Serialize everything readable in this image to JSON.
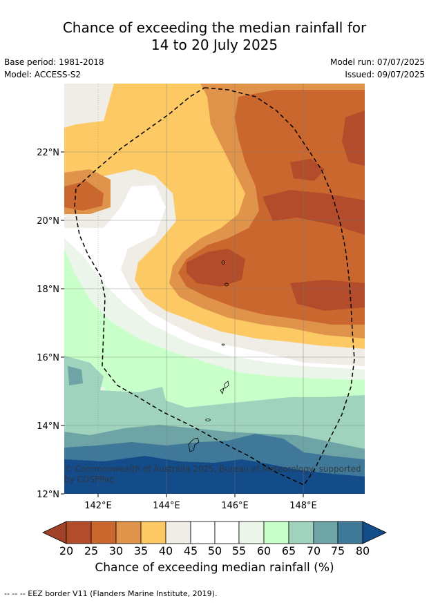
{
  "title_line1": "Chance of exceeding the median rainfall for",
  "title_line2": "14 to 20 July 2025",
  "base_period": "Base period: 1981-2018",
  "model": "Model: ACCESS-S2",
  "model_run": "Model run: 07/07/2025",
  "issued": "Issued: 09/07/2025",
  "lon_ticks": [
    "142°E",
    "144°E",
    "146°E",
    "148°E"
  ],
  "lat_ticks": [
    "22°N",
    "20°N",
    "18°N",
    "16°N",
    "14°N",
    "12°N"
  ],
  "copyright": "© Commonwealth of Australia 2025, Bureau of Meteorology, supported by COSPPac",
  "colorbar": {
    "title": "Chance of exceeding median rainfall (%)",
    "ticks": [
      "20",
      "25",
      "30",
      "35",
      "40",
      "45",
      "50",
      "55",
      "60",
      "65",
      "70",
      "75",
      "80"
    ],
    "colors": {
      "under": "#a0412a",
      "c20": "#b24c2a",
      "c25": "#c9672f",
      "c30": "#e0934a",
      "c35": "#fdc964",
      "c40": "#f0ece6",
      "c45": "#ffffff",
      "c50": "#ffffff",
      "c55": "#ecf5e9",
      "c60": "#c9ffc9",
      "c65": "#9fd3bd",
      "c70": "#6ea4a5",
      "c75": "#3f7898",
      "over": "#144c8a"
    }
  },
  "footnote": "--  --  -- EEZ border V11 (Flanders Marine Institute, 2019)."
}
